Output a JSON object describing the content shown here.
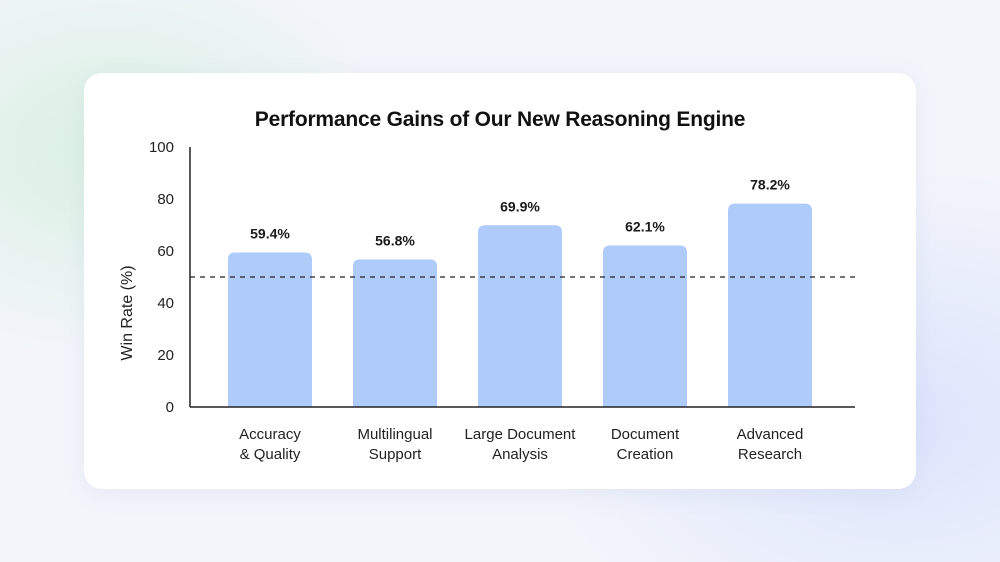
{
  "chart_data": {
    "type": "bar",
    "title": "Performance Gains of Our New Reasoning Engine",
    "xlabel": "",
    "ylabel": "Win Rate (%)",
    "ylim": [
      0,
      100
    ],
    "yticks": [
      0,
      20,
      40,
      60,
      80,
      100
    ],
    "categories": [
      [
        "Accuracy",
        "& Quality"
      ],
      [
        "Multilingual",
        "Support"
      ],
      [
        "Large Document",
        "Analysis"
      ],
      [
        "Document",
        "Creation"
      ],
      [
        "Advanced",
        "Research"
      ]
    ],
    "values": [
      59.4,
      56.8,
      69.9,
      62.1,
      78.2
    ],
    "value_labels": [
      "59.4%",
      "56.8%",
      "69.9%",
      "62.1%",
      "78.2%"
    ],
    "reference_line": 50,
    "bar_color": "#aecbfa",
    "grid": false,
    "legend": "none"
  }
}
